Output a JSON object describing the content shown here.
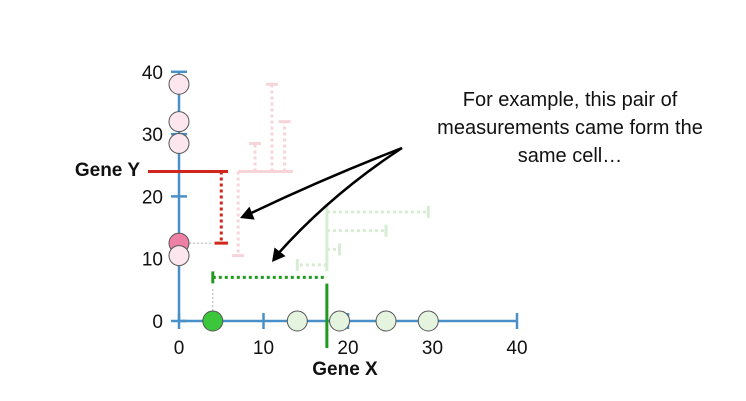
{
  "axes": {
    "x_label": "Gene X",
    "y_label": "Gene Y",
    "x_ticks": [
      "0",
      "10",
      "20",
      "30",
      "40"
    ],
    "y_ticks": [
      "0",
      "10",
      "20",
      "30",
      "40"
    ],
    "xlim": [
      0,
      40
    ],
    "ylim": [
      0,
      40
    ],
    "axis_color": "#4a90c8"
  },
  "annotation": {
    "lines": [
      "For example, this pair of",
      "measurements came form the",
      "same cell…"
    ]
  },
  "colors": {
    "highlight_x": "#1f9a1f",
    "highlight_y": "#d0271d",
    "faded_x": "#d6edd2",
    "faded_y": "#f6d4d8",
    "point_x_highlight": "#3cc63c",
    "point_y_highlight": "#ee7fa5",
    "point_x_faded": "#e4f4df",
    "point_y_faded": "#fde6ee"
  },
  "chart_data": {
    "type": "scatter",
    "x_axis_points": [
      4,
      14,
      19,
      24.5,
      29.5
    ],
    "y_axis_points": [
      38,
      32,
      28.5,
      12.5,
      10.5
    ],
    "highlighted_pair": {
      "x": 4,
      "y": 12.5
    },
    "highlight_lines": {
      "gene_x_value": 17.5,
      "gene_y_value": 24
    }
  }
}
